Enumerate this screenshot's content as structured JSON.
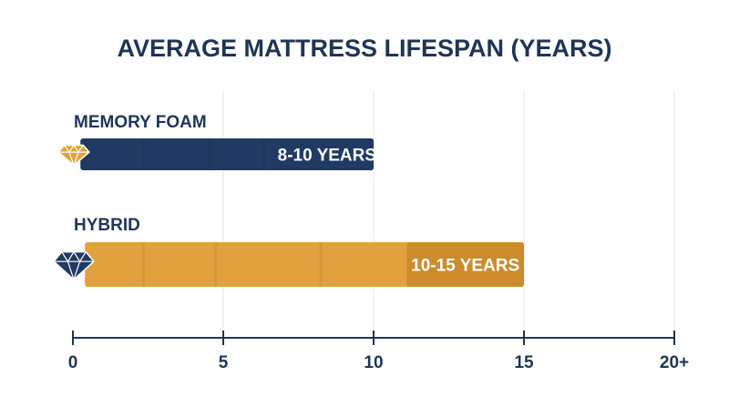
{
  "chart_data": {
    "type": "bar",
    "orientation": "horizontal",
    "title": "AVERAGE MATTRESS LIFESPAN (YEARS)",
    "xlabel": "",
    "ylabel": "",
    "xlim": [
      0,
      20
    ],
    "x_ticks": [
      0,
      5,
      10,
      15,
      20
    ],
    "x_tick_labels": [
      "0",
      "5",
      "10",
      "15",
      "20+"
    ],
    "grid": true,
    "categories": [
      "MEMORY FOAM",
      "HYBRID"
    ],
    "ranges": [
      [
        8,
        10
      ],
      [
        10,
        15
      ]
    ],
    "values": [
      10,
      15
    ],
    "data_labels": [
      "8-10 YEARS",
      "10-15 YEARS"
    ],
    "colors": [
      "#213a63",
      "#e1a23e"
    ],
    "label_colors": [
      "#213a63",
      "#cc8c2c"
    ],
    "icons": [
      "diamond-icon",
      "diamond-icon"
    ],
    "icon_colors": [
      "#e1a23e",
      "#213a63"
    ]
  }
}
